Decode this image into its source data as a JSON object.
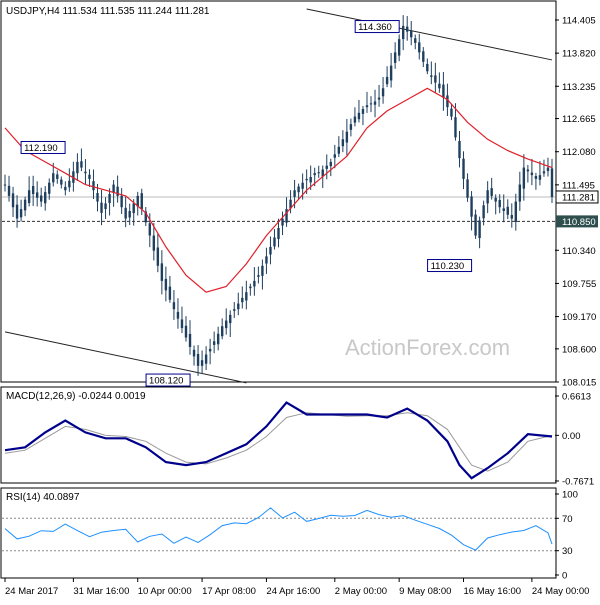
{
  "chart_data": [
    {
      "type": "candlestick",
      "title": "USDJPY,H4  111.534 111.535 111.244 111.281",
      "watermark": "ActionForex.com",
      "ylim": [
        108.015,
        114.405
      ],
      "y_ticks": [
        "114.405",
        "113.820",
        "113.235",
        "112.665",
        "112.080",
        "111.495",
        "110.340",
        "109.755",
        "109.170",
        "108.600",
        "108.015"
      ],
      "price_label": "111.281",
      "level_label": "110.850",
      "level": 110.85,
      "callouts": [
        {
          "text": "112.190",
          "value": 112.19,
          "slot": 4
        },
        {
          "text": "114.360",
          "value": 114.36,
          "slot": 99
        },
        {
          "text": "108.120",
          "value": 108.12,
          "slot": 48
        },
        {
          "text": "110.230",
          "value": 110.23,
          "slot": 117
        }
      ],
      "close_path": [
        [
          0,
          111.5
        ],
        [
          3,
          110.9
        ],
        [
          6,
          111.4
        ],
        [
          9,
          111.2
        ],
        [
          12,
          111.7
        ],
        [
          15,
          111.4
        ],
        [
          18,
          111.9
        ],
        [
          21,
          111.6
        ],
        [
          24,
          111.0
        ],
        [
          27,
          111.5
        ],
        [
          30,
          110.9
        ],
        [
          33,
          111.3
        ],
        [
          36,
          110.6
        ],
        [
          39,
          109.8
        ],
        [
          42,
          109.3
        ],
        [
          45,
          108.8
        ],
        [
          48,
          108.3
        ],
        [
          51,
          108.6
        ],
        [
          54,
          109.0
        ],
        [
          57,
          109.3
        ],
        [
          60,
          109.6
        ],
        [
          63,
          109.9
        ],
        [
          66,
          110.4
        ],
        [
          69,
          110.9
        ],
        [
          72,
          111.4
        ],
        [
          75,
          111.6
        ],
        [
          78,
          111.7
        ],
        [
          81,
          111.9
        ],
        [
          84,
          112.3
        ],
        [
          87,
          112.7
        ],
        [
          90,
          112.9
        ],
        [
          93,
          113.0
        ],
        [
          96,
          113.6
        ],
        [
          99,
          114.3
        ],
        [
          102,
          114.0
        ],
        [
          105,
          113.5
        ],
        [
          108,
          113.2
        ],
        [
          111,
          112.7
        ],
        [
          114,
          111.6
        ],
        [
          117,
          110.6
        ],
        [
          120,
          111.4
        ],
        [
          123,
          111.1
        ],
        [
          126,
          110.9
        ],
        [
          129,
          111.8
        ],
        [
          132,
          111.6
        ],
        [
          135,
          111.8
        ],
        [
          136,
          111.281
        ]
      ],
      "ma_path": [
        [
          0,
          112.5
        ],
        [
          5,
          112.1
        ],
        [
          10,
          111.9
        ],
        [
          15,
          111.7
        ],
        [
          20,
          111.5
        ],
        [
          25,
          111.4
        ],
        [
          30,
          111.3
        ],
        [
          35,
          111.0
        ],
        [
          40,
          110.4
        ],
        [
          45,
          109.9
        ],
        [
          50,
          109.6
        ],
        [
          55,
          109.7
        ],
        [
          60,
          110.1
        ],
        [
          65,
          110.6
        ],
        [
          70,
          111.0
        ],
        [
          75,
          111.4
        ],
        [
          80,
          111.7
        ],
        [
          85,
          112.0
        ],
        [
          90,
          112.5
        ],
        [
          95,
          112.8
        ],
        [
          100,
          113.0
        ],
        [
          105,
          113.2
        ],
        [
          110,
          113.0
        ],
        [
          115,
          112.6
        ],
        [
          120,
          112.3
        ],
        [
          125,
          112.1
        ],
        [
          130,
          111.95
        ],
        [
          136,
          111.8
        ]
      ],
      "channel_lines": [
        {
          "from": [
            75,
            114.6
          ],
          "to": [
            136,
            113.7
          ]
        },
        {
          "from": [
            0,
            108.9
          ],
          "to": [
            60,
            108.0
          ]
        }
      ]
    },
    {
      "type": "line",
      "title": "MACD(12,26,9) -0.0244 0.0019",
      "ylim": [
        -0.7671,
        0.6613
      ],
      "y_ticks": [
        "0.6613",
        "0.00",
        "-0.7671"
      ],
      "series": [
        {
          "color": "#00008b",
          "points": [
            [
              0,
              -0.25
            ],
            [
              5,
              -0.2
            ],
            [
              10,
              0.05
            ],
            [
              15,
              0.25
            ],
            [
              20,
              0.05
            ],
            [
              25,
              -0.05
            ],
            [
              30,
              -0.05
            ],
            [
              35,
              -0.2
            ],
            [
              40,
              -0.45
            ],
            [
              45,
              -0.5
            ],
            [
              50,
              -0.45
            ],
            [
              55,
              -0.3
            ],
            [
              60,
              -0.15
            ],
            [
              65,
              0.15
            ],
            [
              70,
              0.55
            ],
            [
              75,
              0.35
            ],
            [
              80,
              0.35
            ],
            [
              85,
              0.35
            ],
            [
              90,
              0.35
            ],
            [
              95,
              0.3
            ],
            [
              100,
              0.45
            ],
            [
              105,
              0.25
            ],
            [
              110,
              -0.1
            ],
            [
              113,
              -0.5
            ],
            [
              116,
              -0.72
            ],
            [
              120,
              -0.55
            ],
            [
              125,
              -0.3
            ],
            [
              130,
              0.02
            ],
            [
              136,
              -0.02
            ]
          ]
        },
        {
          "color": "#9a9a9a",
          "points": [
            [
              0,
              -0.3
            ],
            [
              5,
              -0.25
            ],
            [
              10,
              -0.05
            ],
            [
              15,
              0.15
            ],
            [
              20,
              0.1
            ],
            [
              25,
              0.0
            ],
            [
              30,
              -0.02
            ],
            [
              35,
              -0.1
            ],
            [
              40,
              -0.3
            ],
            [
              45,
              -0.45
            ],
            [
              50,
              -0.48
            ],
            [
              55,
              -0.38
            ],
            [
              60,
              -0.25
            ],
            [
              65,
              -0.02
            ],
            [
              70,
              0.3
            ],
            [
              75,
              0.38
            ],
            [
              80,
              0.35
            ],
            [
              85,
              0.32
            ],
            [
              90,
              0.33
            ],
            [
              95,
              0.33
            ],
            [
              100,
              0.38
            ],
            [
              105,
              0.33
            ],
            [
              110,
              0.1
            ],
            [
              113,
              -0.2
            ],
            [
              116,
              -0.5
            ],
            [
              120,
              -0.6
            ],
            [
              125,
              -0.45
            ],
            [
              130,
              -0.1
            ],
            [
              136,
              0.0
            ]
          ]
        }
      ]
    },
    {
      "type": "line",
      "title": "RSI(14) 40.0897",
      "ylim": [
        0,
        100
      ],
      "y_ticks": [
        "100",
        "70",
        "30",
        "0"
      ],
      "levels": [
        70,
        30
      ],
      "series": [
        {
          "color": "#1e90ff",
          "points": [
            [
              0,
              55
            ],
            [
              3,
              45
            ],
            [
              6,
              50
            ],
            [
              9,
              55
            ],
            [
              12,
              55
            ],
            [
              15,
              60
            ],
            [
              18,
              55
            ],
            [
              21,
              45
            ],
            [
              24,
              50
            ],
            [
              27,
              55
            ],
            [
              30,
              55
            ],
            [
              33,
              40
            ],
            [
              36,
              45
            ],
            [
              39,
              50
            ],
            [
              42,
              40
            ],
            [
              45,
              45
            ],
            [
              48,
              40
            ],
            [
              51,
              50
            ],
            [
              54,
              60
            ],
            [
              57,
              65
            ],
            [
              60,
              65
            ],
            [
              63,
              70
            ],
            [
              66,
              80
            ],
            [
              69,
              72
            ],
            [
              72,
              75
            ],
            [
              75,
              68
            ],
            [
              78,
              70
            ],
            [
              81,
              73
            ],
            [
              84,
              75
            ],
            [
              87,
              72
            ],
            [
              90,
              78
            ],
            [
              93,
              74
            ],
            [
              96,
              70
            ],
            [
              99,
              76
            ],
            [
              102,
              65
            ],
            [
              105,
              60
            ],
            [
              108,
              55
            ],
            [
              111,
              50
            ],
            [
              114,
              40
            ],
            [
              117,
              30
            ],
            [
              120,
              45
            ],
            [
              123,
              50
            ],
            [
              126,
              55
            ],
            [
              129,
              55
            ],
            [
              132,
              60
            ],
            [
              135,
              50
            ],
            [
              136,
              40
            ]
          ]
        }
      ]
    }
  ],
  "x_axis": {
    "labels": [
      {
        "text": "24 Mar 2017",
        "slot": 0
      },
      {
        "text": "31 Mar 16:00",
        "slot": 17
      },
      {
        "text": "10 Apr 00:00",
        "slot": 33
      },
      {
        "text": "17 Apr 08:00",
        "slot": 49
      },
      {
        "text": "24 Apr 16:00",
        "slot": 65
      },
      {
        "text": "2 May 00:00",
        "slot": 82
      },
      {
        "text": "9 May 08:00",
        "slot": 98
      },
      {
        "text": "16 May 16:00",
        "slot": 114
      },
      {
        "text": "24 May 00:00",
        "slot": 131
      }
    ]
  },
  "colors": {
    "candle": "#1f3f5f",
    "ma": "#e0202a",
    "macd": "#00008b",
    "signal": "#9a9a9a",
    "rsi": "#1e90ff",
    "level_box": "#2f4f4f"
  }
}
